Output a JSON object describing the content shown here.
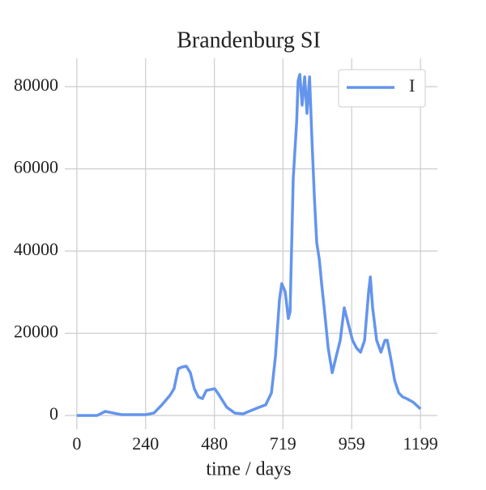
{
  "chart_data": {
    "type": "line",
    "title": "Brandenburg SI",
    "xlabel": "time / days",
    "x": [
      0,
      71,
      99,
      127,
      156,
      240,
      269,
      297,
      325,
      339,
      354,
      368,
      382,
      396,
      410,
      424,
      438,
      452,
      467,
      481,
      495,
      523,
      551,
      580,
      608,
      636,
      659,
      679,
      693,
      707,
      715,
      727,
      738,
      744,
      755,
      767,
      772,
      778,
      786,
      795,
      803,
      812,
      820,
      829,
      837,
      846,
      854,
      863,
      877,
      891,
      905,
      919,
      933,
      947,
      962,
      976,
      990,
      1004,
      1018,
      1024,
      1032,
      1046,
      1061,
      1075,
      1083,
      1094,
      1109,
      1123,
      1137,
      1151,
      1174,
      1199
    ],
    "series": [
      {
        "name": "I",
        "color": "#6495ed",
        "values": [
          0,
          0,
          1000,
          600,
          200,
          200,
          600,
          2600,
          4900,
          6500,
          11400,
          11800,
          12000,
          10400,
          6500,
          4500,
          4100,
          6100,
          6300,
          6500,
          5100,
          2000,
          600,
          400,
          1200,
          2000,
          2600,
          5500,
          14400,
          28200,
          32100,
          30100,
          23600,
          25200,
          57700,
          71500,
          81400,
          83000,
          75500,
          82400,
          73500,
          82400,
          67600,
          52800,
          42000,
          38000,
          32100,
          26200,
          16400,
          10400,
          14400,
          18300,
          26200,
          22300,
          18300,
          16400,
          15400,
          18300,
          30100,
          33700,
          26200,
          18300,
          15400,
          18300,
          18300,
          14400,
          8500,
          5500,
          4500,
          4100,
          3200,
          1600
        ]
      }
    ],
    "xlim": [
      -42,
      1258
    ],
    "ylim": [
      -3350,
      86900
    ],
    "xticks": [
      0,
      240,
      480,
      719,
      959,
      1199
    ],
    "yticks": [
      0,
      20000,
      40000,
      60000,
      80000
    ],
    "grid": true,
    "legend": "upper right"
  }
}
